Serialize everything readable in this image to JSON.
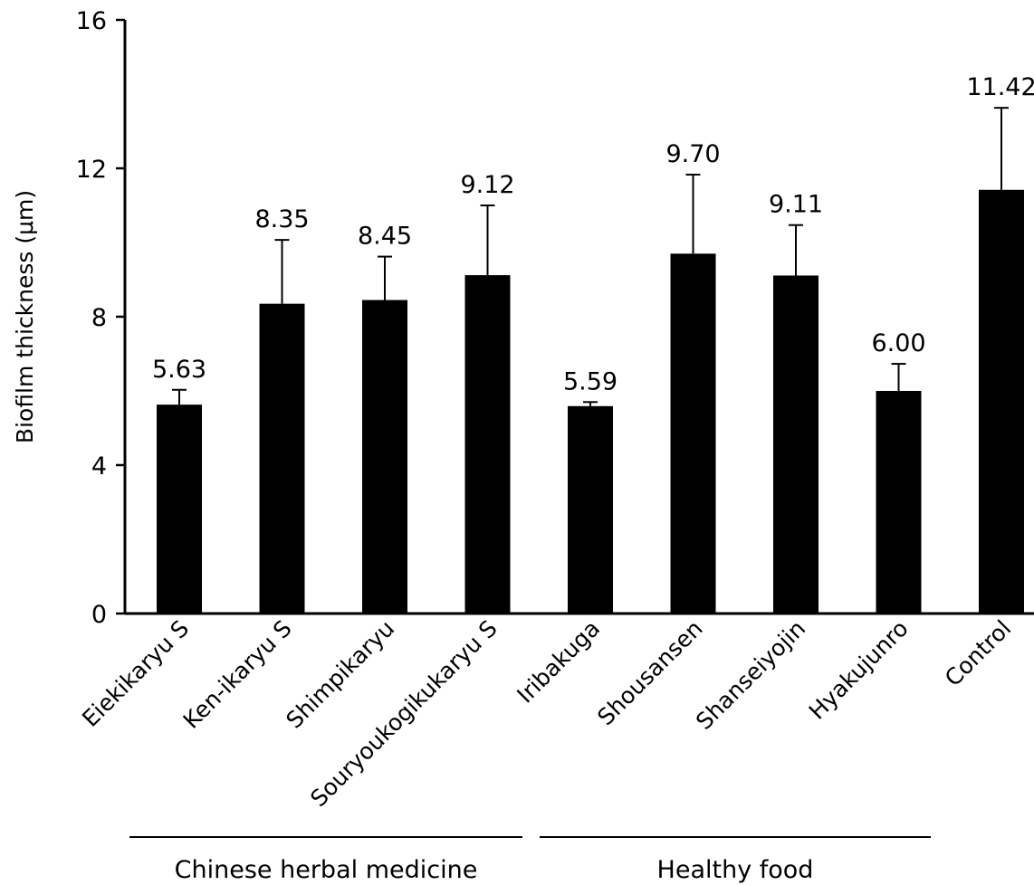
{
  "chart_data": {
    "type": "bar",
    "title": "",
    "xlabel": "",
    "ylabel": "Biofilm thickness (μm)",
    "ylim": [
      0,
      16
    ],
    "yticks": [
      0,
      4,
      8,
      12,
      16
    ],
    "grid": false,
    "categories": [
      "Eiekikaryu S",
      "Ken-ikaryu S",
      "Shimpikaryu",
      "Souryoukogikukaryu S",
      "Iribakuga",
      "Shousansen",
      "Shanseiyojin",
      "Hyakujunro",
      "Control"
    ],
    "values": [
      5.63,
      8.35,
      8.45,
      9.12,
      5.59,
      9.7,
      9.11,
      6.0,
      11.42
    ],
    "value_labels": [
      "5.63",
      "8.35",
      "8.45",
      "9.12",
      "5.59",
      "9.70",
      "9.11",
      "6.00",
      "11.42"
    ],
    "error_upper": [
      6.03,
      10.07,
      9.62,
      11.0,
      5.7,
      11.83,
      10.47,
      6.73,
      13.63
    ],
    "bar_color": "#000000",
    "groups": [
      {
        "label": "Chinese herbal medicine",
        "from": 0,
        "to": 3
      },
      {
        "label": "Healthy food",
        "from": 4,
        "to": 7
      }
    ]
  }
}
